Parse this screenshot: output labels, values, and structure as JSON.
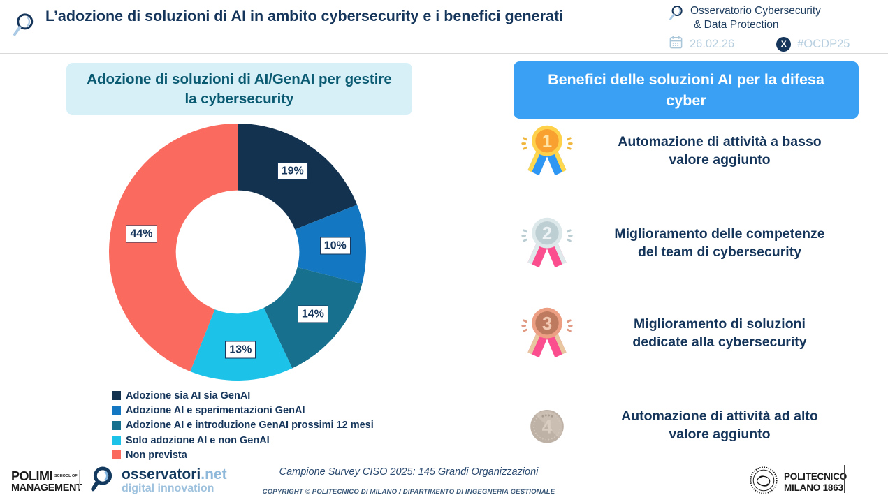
{
  "header": {
    "title": "L’adozione di soluzioni di AI in ambito cybersecurity e i benefici generati",
    "brand_line1": "Osservatorio Cybersecurity",
    "brand_line2": "& Data Protection",
    "date": "26.02.26",
    "hashtag": "#OCDP25"
  },
  "chart_data": {
    "type": "pie",
    "title": "Adozione di soluzioni di AI/GenAI per gestire la cybersecurity",
    "labels": [
      "Adozione sia AI sia GenAI",
      "Adozione AI e sperimentazioni GenAI",
      "Adozione AI e introduzione GenAI prossimi 12 mesi",
      "Solo adozione AI e non GenAI",
      "Non prevista"
    ],
    "values": [
      19,
      10,
      14,
      13,
      44
    ],
    "unit": "%",
    "colors": [
      "#13324f",
      "#1377c2",
      "#16708e",
      "#1cc2e7",
      "#fa6a5f"
    ],
    "donut": true,
    "donut_hole": 0.48,
    "start_angle_deg": 0,
    "direction": "clockwise",
    "legend_position": "bottom-left"
  },
  "right": {
    "box_title": "Benefici delle soluzioni AI per la difesa cyber",
    "items": [
      {
        "rank": "1",
        "icon": "gold-medal-icon",
        "text": "Automazione di attività a basso valore aggiunto"
      },
      {
        "rank": "2",
        "icon": "silver-medal-icon",
        "text": "Miglioramento delle competenze del team di cybersecurity"
      },
      {
        "rank": "3",
        "icon": "bronze-medal-icon",
        "text": "Miglioramento di soluzioni dedicate alla cybersecurity"
      },
      {
        "rank": "4",
        "icon": "gray-coin-icon",
        "text": "Automazione di attività ad alto valore aggiunto"
      }
    ]
  },
  "footer": {
    "polimi_name": "POLIMI",
    "polimi_school": "SCHOOL OF",
    "polimi_mgmt": "MANAGEMENT",
    "oss_name": "osservatori",
    "oss_tld": ".net",
    "oss_tagline": "digital innovation",
    "survey_note": "Campione Survey CISO 2025: 145 Grandi Organizzazioni",
    "copyright": "COPYRIGHT © POLITECNICO DI MILANO / DIPARTIMENTO DI INGEGNERIA GESTIONALE",
    "politecnico_line1": "POLITECNICO",
    "politecnico_line2": "MILANO 1863"
  },
  "icons": {
    "x_badge_glyph": "X"
  },
  "colors": {
    "navy_text": "#15355b",
    "teal_title_text": "#0a5a72",
    "left_box_bg": "#d7f0f8",
    "right_box_bg": "#39a0f4",
    "muted_date_text": "#b7cfdf",
    "header_divider": "#d9d9d9"
  }
}
